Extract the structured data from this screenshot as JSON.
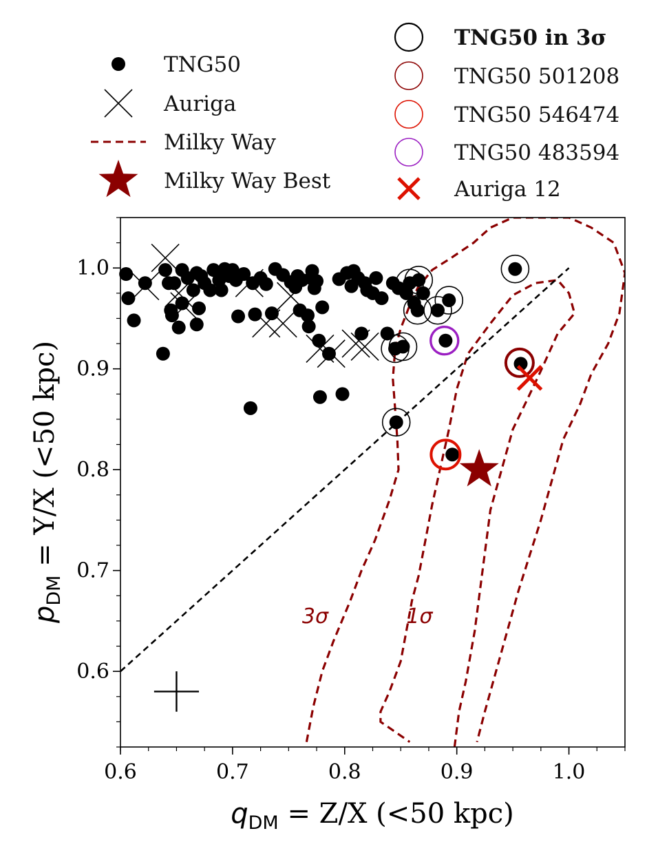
{
  "chart_data": {
    "type": "scatter",
    "xlabel": "q_DM = Z/X (<50 kpc)",
    "ylabel": "p_DM = Y/X (<50 kpc)",
    "xlim": [
      0.6,
      1.05
    ],
    "ylim": [
      0.525,
      1.05
    ],
    "xticks": [
      "0.6",
      "0.7",
      "0.8",
      "0.9",
      "1.0"
    ],
    "yticks": [
      "0.6",
      "0.7",
      "0.8",
      "0.9",
      "1.0"
    ],
    "grid": false,
    "legend": [
      {
        "key": "tng50",
        "label": "TNG50",
        "marker": "dot"
      },
      {
        "key": "auriga",
        "label": "Auriga",
        "marker": "x"
      },
      {
        "key": "mw",
        "label": "Milky Way",
        "marker": "dashed-line"
      },
      {
        "key": "mw_best",
        "label": "Milky Way Best",
        "marker": "star"
      },
      {
        "key": "tng50_3s",
        "label": "TNG50  in 3σ",
        "marker": "open-circle"
      },
      {
        "key": "tng50_501208",
        "label": "TNG50 501208",
        "marker": "open-circle"
      },
      {
        "key": "tng50_546474",
        "label": "TNG50 546474",
        "marker": "open-circle"
      },
      {
        "key": "tng50_483594",
        "label": "TNG50 483594",
        "marker": "open-circle"
      },
      {
        "key": "auriga12",
        "label": "Auriga 12",
        "marker": "x"
      }
    ],
    "legend_placement": "above plot, two columns",
    "colors": {
      "tng50": "#000000",
      "mw": "#8b0000",
      "tng50_501208": "#8b0000",
      "tng50_546474": "#dd1100",
      "tng50_483594": "#9b1fc2",
      "auriga12": "#dd1100"
    },
    "series": [
      {
        "key": "tng50",
        "points": [
          [
            0.605,
            0.994
          ],
          [
            0.607,
            0.97
          ],
          [
            0.612,
            0.948
          ],
          [
            0.622,
            0.985
          ],
          [
            0.638,
            0.915
          ],
          [
            0.64,
            0.998
          ],
          [
            0.643,
            0.985
          ],
          [
            0.645,
            0.958
          ],
          [
            0.646,
            0.953
          ],
          [
            0.648,
            0.985
          ],
          [
            0.652,
            0.941
          ],
          [
            0.655,
            0.998
          ],
          [
            0.655,
            0.965
          ],
          [
            0.66,
            0.99
          ],
          [
            0.665,
            0.978
          ],
          [
            0.668,
            0.995
          ],
          [
            0.668,
            0.944
          ],
          [
            0.67,
            0.96
          ],
          [
            0.672,
            0.992
          ],
          [
            0.675,
            0.985
          ],
          [
            0.68,
            0.978
          ],
          [
            0.683,
            0.998
          ],
          [
            0.688,
            0.988
          ],
          [
            0.69,
            0.978
          ],
          [
            0.693,
            0.999
          ],
          [
            0.697,
            0.992
          ],
          [
            0.7,
            0.998
          ],
          [
            0.703,
            0.988
          ],
          [
            0.705,
            0.952
          ],
          [
            0.71,
            0.994
          ],
          [
            0.716,
            0.861
          ],
          [
            0.718,
            0.985
          ],
          [
            0.72,
            0.954
          ],
          [
            0.725,
            0.99
          ],
          [
            0.73,
            0.984
          ],
          [
            0.735,
            0.955
          ],
          [
            0.738,
            0.999
          ],
          [
            0.745,
            0.993
          ],
          [
            0.752,
            0.986
          ],
          [
            0.756,
            0.981
          ],
          [
            0.758,
            0.992
          ],
          [
            0.76,
            0.958
          ],
          [
            0.762,
            0.988
          ],
          [
            0.767,
            0.953
          ],
          [
            0.768,
            0.942
          ],
          [
            0.77,
            0.99
          ],
          [
            0.771,
            0.997
          ],
          [
            0.773,
            0.98
          ],
          [
            0.775,
            0.987
          ],
          [
            0.777,
            0.928
          ],
          [
            0.778,
            0.872
          ],
          [
            0.78,
            0.961
          ],
          [
            0.786,
            0.915
          ],
          [
            0.795,
            0.989
          ],
          [
            0.798,
            0.875
          ],
          [
            0.802,
            0.995
          ],
          [
            0.806,
            0.982
          ],
          [
            0.808,
            0.997
          ],
          [
            0.812,
            0.99
          ],
          [
            0.815,
            0.935
          ],
          [
            0.818,
            0.985
          ],
          [
            0.82,
            0.978
          ],
          [
            0.825,
            0.975
          ],
          [
            0.828,
            0.99
          ],
          [
            0.833,
            0.97
          ],
          [
            0.838,
            0.935
          ],
          [
            0.843,
            0.985
          ],
          [
            0.845,
            0.92
          ],
          [
            0.846,
            0.847
          ],
          [
            0.848,
            0.98
          ],
          [
            0.852,
            0.922
          ],
          [
            0.855,
            0.975
          ],
          [
            0.858,
            0.985
          ],
          [
            0.862,
            0.965
          ],
          [
            0.865,
            0.958
          ],
          [
            0.866,
            0.988
          ],
          [
            0.87,
            0.975
          ],
          [
            0.883,
            0.958
          ],
          [
            0.89,
            0.928
          ],
          [
            0.893,
            0.968
          ],
          [
            0.896,
            0.815
          ],
          [
            0.952,
            0.999
          ],
          [
            0.957,
            0.905
          ]
        ]
      },
      {
        "key": "auriga",
        "points": [
          [
            0.622,
            0.982
          ],
          [
            0.64,
            1.01
          ],
          [
            0.652,
            0.975
          ],
          [
            0.657,
            0.962
          ],
          [
            0.715,
            0.985
          ],
          [
            0.73,
            0.945
          ],
          [
            0.745,
            0.945
          ],
          [
            0.752,
            0.972
          ],
          [
            0.778,
            0.92
          ],
          [
            0.788,
            0.915
          ],
          [
            0.81,
            0.925
          ],
          [
            0.818,
            0.922
          ]
        ]
      },
      {
        "key": "tng50_3s",
        "points": [
          [
            0.846,
            0.847
          ],
          [
            0.845,
            0.92
          ],
          [
            0.852,
            0.922
          ],
          [
            0.858,
            0.985
          ],
          [
            0.865,
            0.958
          ],
          [
            0.866,
            0.988
          ],
          [
            0.883,
            0.958
          ],
          [
            0.893,
            0.968
          ],
          [
            0.952,
            0.999
          ]
        ]
      },
      {
        "key": "tng50_501208",
        "points": [
          [
            0.956,
            0.906
          ]
        ]
      },
      {
        "key": "tng50_546474",
        "points": [
          [
            0.89,
            0.815
          ]
        ]
      },
      {
        "key": "tng50_483594",
        "points": [
          [
            0.889,
            0.928
          ]
        ]
      },
      {
        "key": "auriga12",
        "points": [
          [
            0.965,
            0.891
          ]
        ]
      },
      {
        "key": "mw_best",
        "points": [
          [
            0.92,
            0.8
          ]
        ]
      }
    ],
    "contours": [
      {
        "label": "1σ",
        "label_at": [
          0.855,
          0.648
        ],
        "points": [
          [
            0.898,
            0.525
          ],
          [
            0.902,
            0.56
          ],
          [
            0.908,
            0.59
          ],
          [
            0.916,
            0.64
          ],
          [
            0.923,
            0.7
          ],
          [
            0.93,
            0.76
          ],
          [
            0.94,
            0.8
          ],
          [
            0.95,
            0.84
          ],
          [
            0.963,
            0.87
          ],
          [
            0.975,
            0.898
          ],
          [
            0.99,
            0.935
          ],
          [
            1.005,
            0.955
          ],
          [
            1.0,
            0.975
          ],
          [
            0.99,
            0.988
          ],
          [
            0.97,
            0.985
          ],
          [
            0.95,
            0.973
          ],
          [
            0.93,
            0.945
          ],
          [
            0.91,
            0.915
          ],
          [
            0.9,
            0.88
          ],
          [
            0.893,
            0.84
          ],
          [
            0.885,
            0.8
          ],
          [
            0.878,
            0.765
          ],
          [
            0.872,
            0.73
          ],
          [
            0.866,
            0.695
          ],
          [
            0.86,
            0.67
          ],
          [
            0.855,
            0.64
          ],
          [
            0.85,
            0.61
          ],
          [
            0.84,
            0.58
          ],
          [
            0.832,
            0.56
          ],
          [
            0.832,
            0.55
          ],
          [
            0.845,
            0.54
          ],
          [
            0.858,
            0.53
          ]
        ]
      },
      {
        "label": "3σ",
        "label_at": [
          0.762,
          0.648
        ],
        "points": [
          [
            0.766,
            0.53
          ],
          [
            0.772,
            0.565
          ],
          [
            0.78,
            0.6
          ],
          [
            0.79,
            0.63
          ],
          [
            0.805,
            0.67
          ],
          [
            0.815,
            0.7
          ],
          [
            0.827,
            0.73
          ],
          [
            0.84,
            0.77
          ],
          [
            0.848,
            0.8
          ],
          [
            0.847,
            0.83
          ],
          [
            0.845,
            0.86
          ],
          [
            0.843,
            0.89
          ],
          [
            0.845,
            0.92
          ],
          [
            0.85,
            0.94
          ],
          [
            0.857,
            0.96
          ],
          [
            0.865,
            0.98
          ],
          [
            0.878,
            0.998
          ],
          [
            0.895,
            1.01
          ],
          [
            0.915,
            1.025
          ],
          [
            0.93,
            1.04
          ],
          [
            0.95,
            1.05
          ],
          [
            0.975,
            1.05
          ],
          [
            1.0,
            1.05
          ],
          [
            1.02,
            1.04
          ],
          [
            1.04,
            1.025
          ],
          [
            1.05,
            0.995
          ],
          [
            1.045,
            0.955
          ],
          [
            1.035,
            0.925
          ],
          [
            1.02,
            0.895
          ],
          [
            1.01,
            0.865
          ],
          [
            0.995,
            0.83
          ],
          [
            0.985,
            0.79
          ],
          [
            0.975,
            0.75
          ],
          [
            0.965,
            0.715
          ],
          [
            0.955,
            0.68
          ],
          [
            0.945,
            0.64
          ],
          [
            0.935,
            0.6
          ],
          [
            0.925,
            0.56
          ],
          [
            0.918,
            0.53
          ]
        ]
      }
    ],
    "reference_line": {
      "style": "dashed",
      "points": [
        [
          0.6,
          0.6
        ],
        [
          1.0,
          1.0
        ]
      ]
    },
    "error_cross": {
      "center": [
        0.65,
        0.58
      ],
      "xerr": 0.02,
      "yerr": 0.02
    }
  }
}
